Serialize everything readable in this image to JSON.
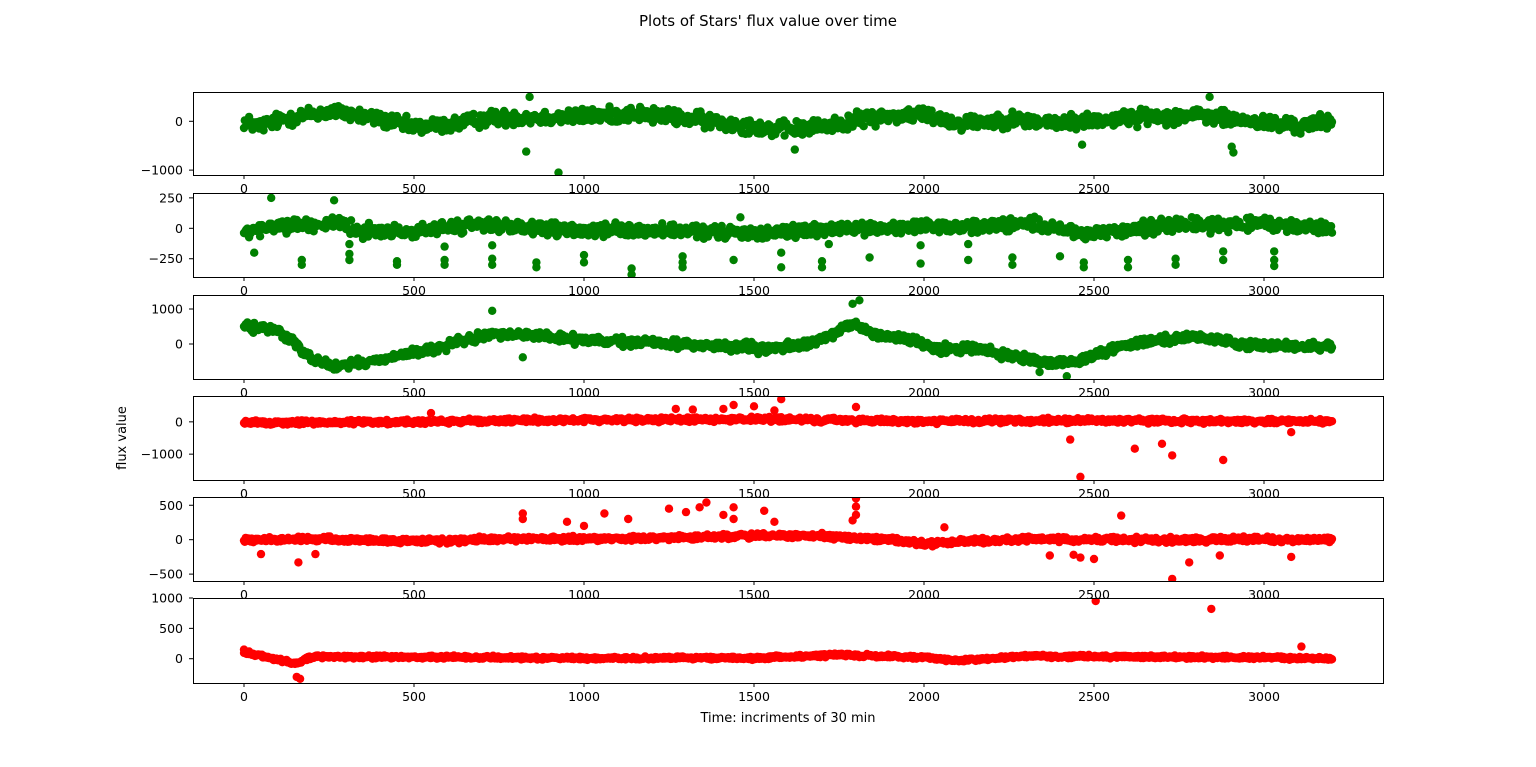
{
  "figure": {
    "title": "Plots of Stars' flux value over time",
    "xlabel": "Time: incriments of 30 min",
    "ylabel": "flux value"
  },
  "chart_data": [
    {
      "type": "scatter",
      "color": "#008000",
      "xlim": [
        -150,
        3350
      ],
      "ylim": [
        -1100,
        600
      ],
      "xticks": [
        0,
        500,
        1000,
        1500,
        2000,
        2500,
        3000
      ],
      "yticks": [
        -1000,
        0
      ],
      "baseline": [
        [
          0,
          0
        ],
        [
          40,
          -100
        ],
        [
          120,
          50
        ],
        [
          200,
          150
        ],
        [
          270,
          200
        ],
        [
          400,
          40
        ],
        [
          500,
          -120
        ],
        [
          620,
          -60
        ],
        [
          720,
          60
        ],
        [
          800,
          80
        ],
        [
          900,
          80
        ],
        [
          1000,
          100
        ],
        [
          1150,
          160
        ],
        [
          1300,
          60
        ],
        [
          1450,
          -60
        ],
        [
          1550,
          -160
        ],
        [
          1650,
          -150
        ],
        [
          1750,
          -50
        ],
        [
          1850,
          80
        ],
        [
          2000,
          150
        ],
        [
          2100,
          -40
        ],
        [
          2250,
          40
        ],
        [
          2400,
          -40
        ],
        [
          2500,
          20
        ],
        [
          2650,
          90
        ],
        [
          2800,
          120
        ],
        [
          2950,
          0
        ],
        [
          3100,
          -100
        ],
        [
          3200,
          0
        ]
      ],
      "noise": 150,
      "outliers": [
        [
          830,
          -620
        ],
        [
          925,
          -1050
        ],
        [
          2465,
          -480
        ],
        [
          2905,
          -520
        ],
        [
          2910,
          -640
        ],
        [
          1620,
          -580
        ],
        [
          840,
          500
        ],
        [
          2840,
          500
        ]
      ]
    },
    {
      "type": "scatter",
      "color": "#008000",
      "xlim": [
        -150,
        3350
      ],
      "ylim": [
        -400,
        290
      ],
      "xticks": [
        0,
        500,
        1000,
        1500,
        2000,
        2500,
        3000
      ],
      "yticks": [
        -250,
        0,
        250
      ],
      "baseline": [
        [
          0,
          -40
        ],
        [
          100,
          20
        ],
        [
          250,
          40
        ],
        [
          350,
          -20
        ],
        [
          500,
          -30
        ],
        [
          700,
          40
        ],
        [
          800,
          0
        ],
        [
          1000,
          -20
        ],
        [
          1200,
          -20
        ],
        [
          1500,
          -40
        ],
        [
          1800,
          0
        ],
        [
          2100,
          10
        ],
        [
          2300,
          40
        ],
        [
          2500,
          -60
        ],
        [
          2700,
          30
        ],
        [
          3000,
          30
        ],
        [
          3200,
          0
        ]
      ],
      "noise": 50,
      "outliers": [
        [
          80,
          250
        ],
        [
          265,
          230
        ],
        [
          30,
          -200
        ],
        [
          170,
          -260
        ],
        [
          170,
          -300
        ],
        [
          310,
          -130
        ],
        [
          310,
          -210
        ],
        [
          310,
          -260
        ],
        [
          450,
          -270
        ],
        [
          450,
          -300
        ],
        [
          590,
          -150
        ],
        [
          590,
          -260
        ],
        [
          590,
          -300
        ],
        [
          730,
          -140
        ],
        [
          730,
          -250
        ],
        [
          730,
          -300
        ],
        [
          860,
          -280
        ],
        [
          860,
          -320
        ],
        [
          1000,
          -220
        ],
        [
          1000,
          -280
        ],
        [
          1140,
          -330
        ],
        [
          1140,
          -380
        ],
        [
          1290,
          -230
        ],
        [
          1290,
          -280
        ],
        [
          1290,
          -320
        ],
        [
          1440,
          -260
        ],
        [
          1460,
          90
        ],
        [
          1580,
          -200
        ],
        [
          1580,
          -320
        ],
        [
          1700,
          -270
        ],
        [
          1700,
          -320
        ],
        [
          1720,
          -130
        ],
        [
          1840,
          -240
        ],
        [
          1990,
          -140
        ],
        [
          1990,
          -290
        ],
        [
          2130,
          -130
        ],
        [
          2130,
          -260
        ],
        [
          2260,
          -240
        ],
        [
          2260,
          -300
        ],
        [
          2400,
          -230
        ],
        [
          2470,
          -280
        ],
        [
          2470,
          -320
        ],
        [
          2600,
          -260
        ],
        [
          2600,
          -320
        ],
        [
          2740,
          -250
        ],
        [
          2740,
          -300
        ],
        [
          2880,
          -190
        ],
        [
          2880,
          -260
        ],
        [
          3030,
          -190
        ],
        [
          3030,
          -260
        ],
        [
          3030,
          -310
        ]
      ]
    },
    {
      "type": "scatter",
      "color": "#008000",
      "xlim": [
        -150,
        3350
      ],
      "ylim": [
        -1000,
        1400
      ],
      "xticks": [
        0,
        500,
        1000,
        1500,
        2000,
        2500,
        3000
      ],
      "yticks": [
        0,
        1000
      ],
      "baseline": [
        [
          0,
          500
        ],
        [
          100,
          400
        ],
        [
          200,
          -400
        ],
        [
          260,
          -650
        ],
        [
          350,
          -550
        ],
        [
          460,
          -320
        ],
        [
          560,
          -150
        ],
        [
          650,
          100
        ],
        [
          740,
          300
        ],
        [
          850,
          250
        ],
        [
          1000,
          100
        ],
        [
          1200,
          40
        ],
        [
          1400,
          -60
        ],
        [
          1550,
          -150
        ],
        [
          1700,
          100
        ],
        [
          1790,
          600
        ],
        [
          1850,
          300
        ],
        [
          1950,
          150
        ],
        [
          2050,
          -150
        ],
        [
          2150,
          -100
        ],
        [
          2250,
          -350
        ],
        [
          2350,
          -550
        ],
        [
          2450,
          -500
        ],
        [
          2550,
          -150
        ],
        [
          2650,
          100
        ],
        [
          2800,
          200
        ],
        [
          2950,
          0
        ],
        [
          3100,
          -100
        ],
        [
          3200,
          -50
        ]
      ],
      "noise": 120,
      "outliers": [
        [
          820,
          -380
        ],
        [
          1810,
          1250
        ],
        [
          1790,
          1150
        ],
        [
          730,
          950
        ],
        [
          2420,
          -920
        ],
        [
          2340,
          -800
        ]
      ]
    },
    {
      "type": "scatter",
      "color": "#ff0000",
      "xlim": [
        -150,
        3350
      ],
      "ylim": [
        -1800,
        800
      ],
      "xticks": [
        0,
        500,
        1000,
        1500,
        2000,
        2500,
        3000
      ],
      "yticks": [
        -1000,
        0
      ],
      "baseline": [
        [
          0,
          -30
        ],
        [
          500,
          0
        ],
        [
          1000,
          60
        ],
        [
          1500,
          80
        ],
        [
          2000,
          20
        ],
        [
          2500,
          40
        ],
        [
          3000,
          20
        ],
        [
          3200,
          20
        ]
      ],
      "noise": 70,
      "outliers": [
        [
          1580,
          700
        ],
        [
          1270,
          400
        ],
        [
          1320,
          380
        ],
        [
          1410,
          400
        ],
        [
          1440,
          520
        ],
        [
          1500,
          480
        ],
        [
          1560,
          350
        ],
        [
          1800,
          460
        ],
        [
          550,
          270
        ],
        [
          2430,
          -550
        ],
        [
          2460,
          -1700
        ],
        [
          2620,
          -830
        ],
        [
          2700,
          -680
        ],
        [
          2730,
          -1040
        ],
        [
          2880,
          -1180
        ],
        [
          3080,
          -320
        ]
      ]
    },
    {
      "type": "scatter",
      "color": "#ff0000",
      "xlim": [
        -150,
        3350
      ],
      "ylim": [
        -600,
        620
      ],
      "xticks": [
        0,
        500,
        1000,
        1500,
        2000,
        2500,
        3000
      ],
      "yticks": [
        -500,
        0,
        500
      ],
      "baseline": [
        [
          0,
          -10
        ],
        [
          200,
          10
        ],
        [
          500,
          -20
        ],
        [
          800,
          10
        ],
        [
          1000,
          10
        ],
        [
          1200,
          20
        ],
        [
          1500,
          60
        ],
        [
          1700,
          50
        ],
        [
          1900,
          0
        ],
        [
          2000,
          -60
        ],
        [
          2100,
          -30
        ],
        [
          2300,
          10
        ],
        [
          2600,
          0
        ],
        [
          3000,
          0
        ],
        [
          3200,
          0
        ]
      ],
      "noise": 35,
      "outliers": [
        [
          1800,
          600
        ],
        [
          1800,
          480
        ],
        [
          1800,
          360
        ],
        [
          1790,
          280
        ],
        [
          820,
          380
        ],
        [
          820,
          300
        ],
        [
          1060,
          380
        ],
        [
          1130,
          300
        ],
        [
          1250,
          450
        ],
        [
          1300,
          400
        ],
        [
          1340,
          470
        ],
        [
          1360,
          540
        ],
        [
          1410,
          360
        ],
        [
          1440,
          470
        ],
        [
          1440,
          300
        ],
        [
          1530,
          420
        ],
        [
          1560,
          260
        ],
        [
          950,
          260
        ],
        [
          1000,
          200
        ],
        [
          160,
          -330
        ],
        [
          210,
          -210
        ],
        [
          2060,
          180
        ],
        [
          2370,
          -230
        ],
        [
          2440,
          -220
        ],
        [
          2460,
          -260
        ],
        [
          2580,
          350
        ],
        [
          2500,
          -280
        ],
        [
          2730,
          -570
        ],
        [
          2780,
          -330
        ],
        [
          2870,
          -230
        ],
        [
          3080,
          -250
        ],
        [
          50,
          -210
        ]
      ]
    },
    {
      "type": "scatter",
      "color": "#ff0000",
      "xlim": [
        -150,
        3350
      ],
      "ylim": [
        -400,
        1000
      ],
      "xticks": [
        0,
        500,
        1000,
        1500,
        2000,
        2500,
        3000
      ],
      "yticks": [
        0,
        500,
        1000
      ],
      "baseline": [
        [
          0,
          100
        ],
        [
          60,
          40
        ],
        [
          150,
          -80
        ],
        [
          200,
          30
        ],
        [
          400,
          30
        ],
        [
          1000,
          10
        ],
        [
          1500,
          10
        ],
        [
          1750,
          60
        ],
        [
          2000,
          20
        ],
        [
          2100,
          -30
        ],
        [
          2300,
          40
        ],
        [
          3000,
          20
        ],
        [
          3200,
          0
        ]
      ],
      "noise": 25,
      "outliers": [
        [
          155,
          -300
        ],
        [
          165,
          -330
        ],
        [
          2505,
          950
        ],
        [
          2845,
          820
        ],
        [
          3110,
          200
        ],
        [
          0,
          150
        ]
      ]
    }
  ]
}
